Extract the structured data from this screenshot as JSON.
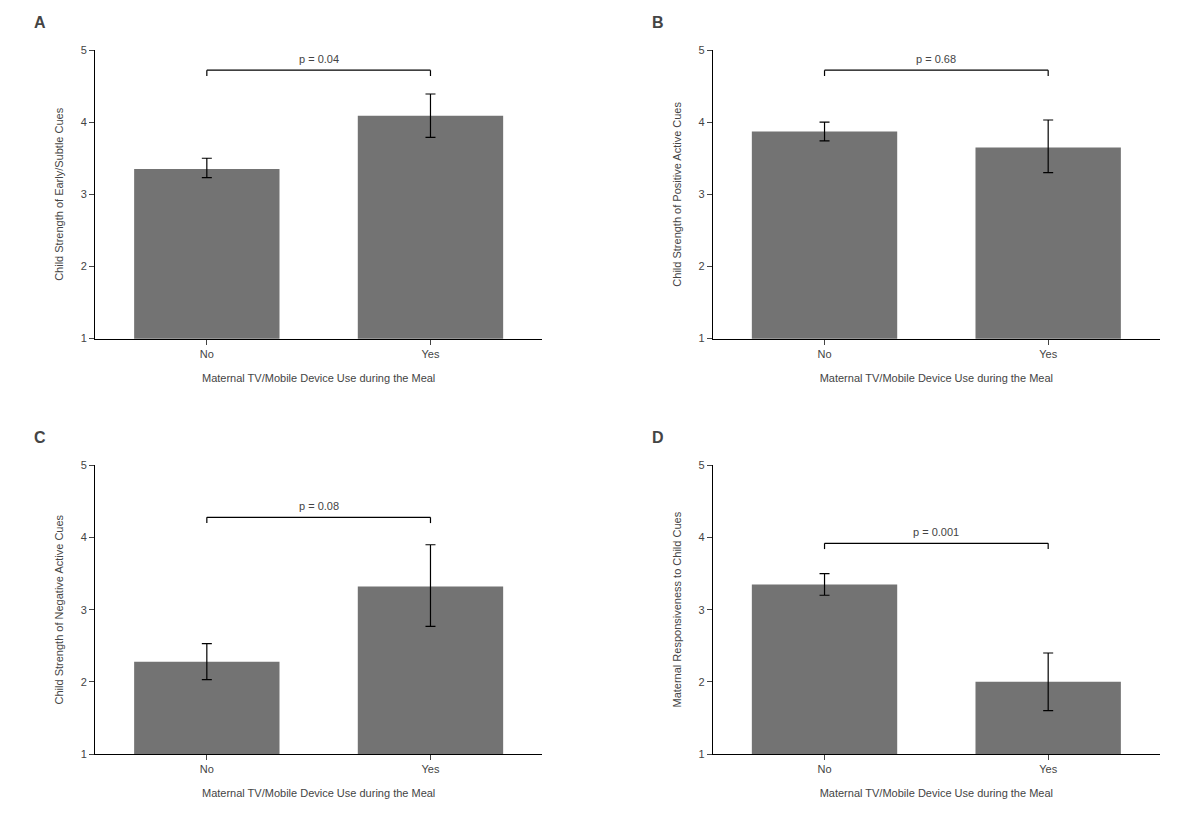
{
  "chart_data": [
    {
      "type": "bar",
      "title": "A",
      "ylabel": "Child Strength of Early/Subtle Cues",
      "xlabel": "Maternal TV/Mobile Device Use during the Meal",
      "categories": [
        "No",
        "Yes"
      ],
      "values": [
        3.35,
        4.09
      ],
      "error_upper": [
        0.15,
        0.3
      ],
      "error_lower": [
        0.12,
        0.3
      ],
      "color": "#737373",
      "ylim": [
        1,
        5
      ],
      "yticks": [
        1,
        2,
        3,
        4,
        5
      ],
      "grid": false,
      "annotation": "p = 0.04",
      "bracket_y": 4.72
    },
    {
      "type": "bar",
      "title": "B",
      "ylabel": "Child Strength of Positive Active Cues",
      "xlabel": "Maternal TV/Mobile Device Use during the Meal",
      "categories": [
        "No",
        "Yes"
      ],
      "values": [
        3.87,
        3.65
      ],
      "error_upper": [
        0.13,
        0.38
      ],
      "error_lower": [
        0.13,
        0.35
      ],
      "color": "#737373",
      "ylim": [
        1,
        5
      ],
      "yticks": [
        1,
        2,
        3,
        4,
        5
      ],
      "grid": false,
      "annotation": "p = 0.68",
      "bracket_y": 4.72
    },
    {
      "type": "bar",
      "title": "C",
      "ylabel": "Child Strength of Negative Active Cues",
      "xlabel": "Maternal TV/Mobile Device Use during the Meal",
      "categories": [
        "No",
        "Yes"
      ],
      "values": [
        2.28,
        3.32
      ],
      "error_upper": [
        0.25,
        0.58
      ],
      "error_lower": [
        0.25,
        0.55
      ],
      "color": "#737373",
      "ylim": [
        1,
        5
      ],
      "yticks": [
        1,
        2,
        3,
        4,
        5
      ],
      "grid": false,
      "annotation": "p = 0.08",
      "bracket_y": 4.28
    },
    {
      "type": "bar",
      "title": "D",
      "ylabel": "Maternal Responsiveness to Child Cues",
      "xlabel": "Maternal TV/Mobile Device Use during the Meal",
      "categories": [
        "No",
        "Yes"
      ],
      "values": [
        3.35,
        2.0
      ],
      "error_upper": [
        0.15,
        0.4
      ],
      "error_lower": [
        0.15,
        0.4
      ],
      "color": "#737373",
      "ylim": [
        1,
        5
      ],
      "yticks": [
        1,
        2,
        3,
        4,
        5
      ],
      "grid": false,
      "annotation": "p = 0.001",
      "bracket_y": 3.92
    }
  ]
}
